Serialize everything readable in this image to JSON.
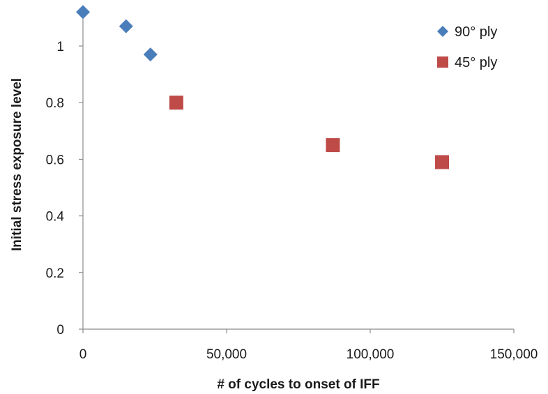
{
  "chart_data": {
    "type": "scatter",
    "title": "",
    "xlabel": "# of cycles to onset of IFF",
    "ylabel": "Initial stress exposure level",
    "xlim": [
      0,
      150000
    ],
    "ylim": [
      0,
      1.1
    ],
    "x_ticks": [
      0,
      50000,
      100000,
      150000
    ],
    "x_tick_labels": [
      "0",
      "50,000",
      "100,000",
      "150,000"
    ],
    "y_ticks": [
      0,
      0.2,
      0.4,
      0.6,
      0.8,
      1
    ],
    "y_tick_labels": [
      "0",
      "0.2",
      "0.4",
      "0.6",
      "0.8",
      "1"
    ],
    "grid": false,
    "legend_position": "top-right",
    "series": [
      {
        "name": "90° ply",
        "marker": "diamond",
        "color": "#4a7ebb",
        "points": [
          {
            "x": 0,
            "y": 1.12
          },
          {
            "x": 15000,
            "y": 1.07
          },
          {
            "x": 23500,
            "y": 0.97
          }
        ]
      },
      {
        "name": "45° ply",
        "marker": "square",
        "color": "#be4b48",
        "points": [
          {
            "x": 32500,
            "y": 0.8
          },
          {
            "x": 87000,
            "y": 0.65
          },
          {
            "x": 125000,
            "y": 0.59
          }
        ]
      }
    ]
  }
}
